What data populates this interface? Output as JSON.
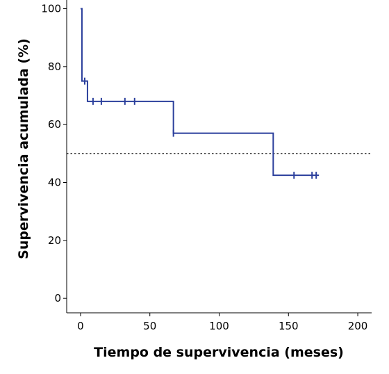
{
  "chart_data": {
    "type": "line",
    "title": "",
    "xlabel": "Tiempo de supervivencia (meses)",
    "ylabel": "Supervivencia acumulada (%)",
    "xlim": [
      -10,
      210
    ],
    "ylim": [
      -5,
      103
    ],
    "xticks": [
      0,
      50,
      100,
      150,
      200
    ],
    "yticks": [
      0,
      20,
      40,
      60,
      80,
      100
    ],
    "xtick_labels": [
      "0",
      "50",
      "100",
      "150",
      "200"
    ],
    "ytick_labels": [
      "0",
      "20",
      "40",
      "60",
      "80",
      "100"
    ],
    "grid": false,
    "legend": "none",
    "series": [
      {
        "step": true,
        "color": "#2B3F9C",
        "x": [
          0,
          1,
          5,
          67,
          139,
          172
        ],
        "y": [
          100,
          75,
          68,
          57,
          42.5,
          42.5
        ],
        "censored": [
          {
            "x": 3,
            "y": 75
          },
          {
            "x": 9,
            "y": 68
          },
          {
            "x": 15,
            "y": 68
          },
          {
            "x": 32,
            "y": 68
          },
          {
            "x": 39,
            "y": 68
          },
          {
            "x": 67,
            "y": 57
          },
          {
            "x": 154,
            "y": 42.5
          },
          {
            "x": 167,
            "y": 42.5
          },
          {
            "x": 170,
            "y": 42.5
          }
        ]
      }
    ],
    "reference_lines": [
      {
        "axis": "y",
        "value": 50,
        "style": "dotted",
        "color": "#000000"
      }
    ]
  }
}
